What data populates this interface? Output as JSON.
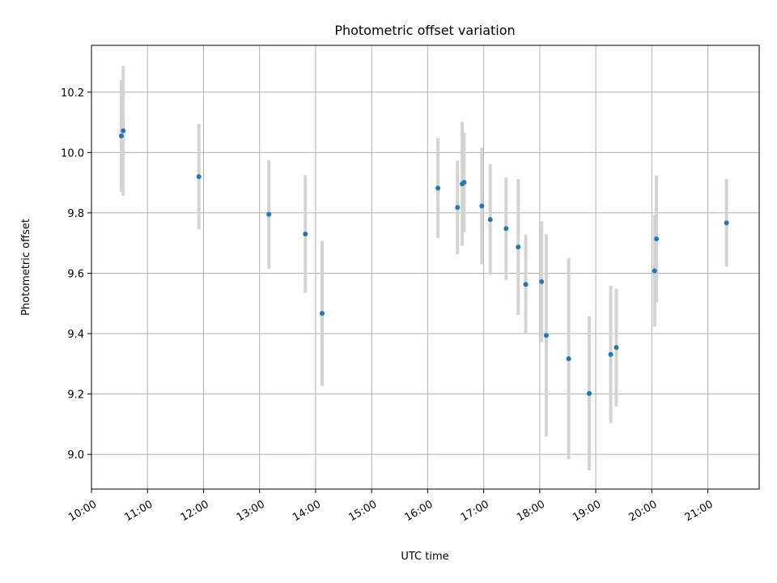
{
  "chart_data": {
    "type": "scatter",
    "title": "Photometric offset variation",
    "xlabel": "UTC time",
    "ylabel": "Photometric offset",
    "x_ticks": [
      "10:00",
      "11:00",
      "12:00",
      "13:00",
      "14:00",
      "15:00",
      "16:00",
      "17:00",
      "18:00",
      "19:00",
      "20:00",
      "21:00"
    ],
    "y_ticks": [
      9.0,
      9.2,
      9.4,
      9.6,
      9.8,
      10.0,
      10.2
    ],
    "xlim": [
      "10:00",
      "21:55"
    ],
    "ylim": [
      8.885,
      10.355
    ],
    "grid": true,
    "marker_color": "#1f77b4",
    "errorbar_color": "#d3d3d3",
    "points": [
      {
        "x": "10:32",
        "y": 10.055,
        "err": 0.185
      },
      {
        "x": "10:34",
        "y": 10.072,
        "err": 0.215
      },
      {
        "x": "11:55",
        "y": 9.92,
        "err": 0.175
      },
      {
        "x": "13:10",
        "y": 9.795,
        "err": 0.18
      },
      {
        "x": "13:49",
        "y": 9.73,
        "err": 0.195
      },
      {
        "x": "14:07",
        "y": 9.467,
        "err": 0.24
      },
      {
        "x": "16:11",
        "y": 9.882,
        "err": 0.165
      },
      {
        "x": "16:32",
        "y": 9.818,
        "err": 0.155
      },
      {
        "x": "16:37",
        "y": 9.896,
        "err": 0.205
      },
      {
        "x": "16:39",
        "y": 9.901,
        "err": 0.165
      },
      {
        "x": "16:58",
        "y": 9.823,
        "err": 0.193
      },
      {
        "x": "17:07",
        "y": 9.778,
        "err": 0.183
      },
      {
        "x": "17:24",
        "y": 9.748,
        "err": 0.17
      },
      {
        "x": "17:37",
        "y": 9.687,
        "err": 0.225
      },
      {
        "x": "17:45",
        "y": 9.563,
        "err": 0.165
      },
      {
        "x": "18:02",
        "y": 9.572,
        "err": 0.2
      },
      {
        "x": "18:07",
        "y": 9.394,
        "err": 0.335
      },
      {
        "x": "18:31",
        "y": 9.317,
        "err": 0.333
      },
      {
        "x": "18:53",
        "y": 9.202,
        "err": 0.255
      },
      {
        "x": "19:16",
        "y": 9.331,
        "err": 0.228
      },
      {
        "x": "19:22",
        "y": 9.354,
        "err": 0.195
      },
      {
        "x": "20:03",
        "y": 9.608,
        "err": 0.185
      },
      {
        "x": "20:05",
        "y": 9.714,
        "err": 0.21
      },
      {
        "x": "21:20",
        "y": 9.767,
        "err": 0.145
      }
    ]
  }
}
